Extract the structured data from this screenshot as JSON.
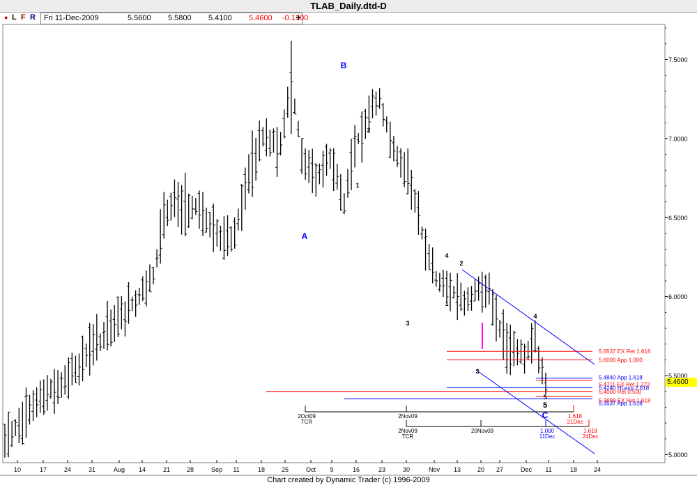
{
  "window": {
    "title": "TLAB_Daily.dtd-D"
  },
  "toolbar": {
    "items": [
      "●",
      "L",
      "F",
      "R"
    ],
    "quote": {
      "date": "Fri 11-Dec-2009",
      "open": "5.5600",
      "high": "5.5800",
      "low": "5.4100",
      "close": "5.4600",
      "change": "-0.1300"
    },
    "plus": "+"
  },
  "footer": {
    "credit": "Chart created by Dynamic Trader  (c) 1996-2009"
  },
  "colors": {
    "bars": "#000000",
    "blue": "#0000ff",
    "red": "#ff0000",
    "magenta": "#ff00ff",
    "last_price_bg": "#ffff00"
  },
  "chart_data": {
    "type": "ohlc-bar",
    "y_range": [
      4.97,
      7.72
    ],
    "y_ticks": [
      "7.5000",
      "7.0000",
      "6.5000",
      "6.0000",
      "5.5000",
      "5.0000"
    ],
    "last_price": "5.4600",
    "x_tick_labels": [
      "10",
      "17",
      "24",
      "31",
      "Aug",
      "14",
      "21",
      "28",
      "Sep",
      "11",
      "18",
      "25",
      "Oct",
      "9",
      "16",
      "23",
      "30",
      "Nov",
      "13",
      "20",
      "27",
      "Dec",
      "11",
      "18",
      "24"
    ],
    "wave_labels": [
      {
        "text": "B",
        "color": "blue"
      },
      {
        "text": "A",
        "color": "blue"
      },
      {
        "text": "C",
        "color": "blue"
      },
      {
        "text": "2",
        "color": "black"
      },
      {
        "text": "1",
        "color": "black"
      },
      {
        "text": "3",
        "color": "black"
      },
      {
        "text": "4",
        "color": "black"
      },
      {
        "text": "2",
        "color": "black"
      },
      {
        "text": "1",
        "color": "black"
      },
      {
        "text": "3",
        "color": "black"
      },
      {
        "text": "4",
        "color": "black"
      },
      {
        "text": "5",
        "color": "black"
      },
      {
        "text": "5",
        "color": "black"
      }
    ],
    "price_levels": [
      {
        "price": 5.6537,
        "label": "5.6537 EX Ret 1.618",
        "color": "red"
      },
      {
        "price": 5.6,
        "label": "5.6000 App 1.000",
        "color": "red"
      },
      {
        "price": 5.484,
        "label": "5.4840 App 1.618",
        "color": "blue"
      },
      {
        "price": 5.471,
        "label": "5.4711 EX Ret 1.272",
        "color": "red"
      },
      {
        "price": 5.424,
        "label": "5.4240 HLexp 2.618",
        "color": "blue"
      },
      {
        "price": 5.4,
        "label": "5.4000 Ret 0.500",
        "color": "red"
      },
      {
        "price": 5.3699,
        "label": "5.3699 EX Ret 1.618",
        "color": "red"
      },
      {
        "price": 5.3537,
        "label": "5.3537 App 1.618",
        "color": "blue"
      }
    ],
    "time_markers": [
      {
        "label": "2Oct09",
        "sub": "TCR",
        "color": "black"
      },
      {
        "label": "2Nov09",
        "sub": "",
        "color": "black"
      },
      {
        "label": "2Nov09",
        "sub": "TCR",
        "color": "black"
      },
      {
        "label": "20Nov09",
        "sub": "",
        "color": "black"
      },
      {
        "label": "1.000",
        "sub": "11Dec",
        "color": "blue"
      },
      {
        "label": "1.618",
        "sub": "21Dec",
        "color": "red"
      },
      {
        "label": "1.618",
        "sub": "24Dec",
        "color": "red"
      }
    ]
  }
}
